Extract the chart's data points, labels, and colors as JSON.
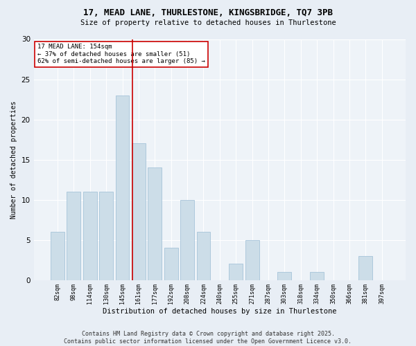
{
  "title_line1": "17, MEAD LANE, THURLESTONE, KINGSBRIDGE, TQ7 3PB",
  "title_line2": "Size of property relative to detached houses in Thurlestone",
  "xlabel": "Distribution of detached houses by size in Thurlestone",
  "ylabel": "Number of detached properties",
  "bar_color": "#ccdde8",
  "bar_edge_color": "#9bbcd4",
  "categories": [
    "82sqm",
    "98sqm",
    "114sqm",
    "130sqm",
    "145sqm",
    "161sqm",
    "177sqm",
    "192sqm",
    "208sqm",
    "224sqm",
    "240sqm",
    "255sqm",
    "271sqm",
    "287sqm",
    "303sqm",
    "318sqm",
    "334sqm",
    "350sqm",
    "366sqm",
    "381sqm",
    "397sqm"
  ],
  "values": [
    6,
    11,
    11,
    11,
    23,
    17,
    14,
    4,
    10,
    6,
    0,
    2,
    5,
    0,
    1,
    0,
    1,
    0,
    0,
    3,
    0
  ],
  "vline_x": 4.6,
  "vline_color": "#cc0000",
  "annotation_text": "17 MEAD LANE: 154sqm\n← 37% of detached houses are smaller (51)\n62% of semi-detached houses are larger (85) →",
  "annotation_box_color": "#ffffff",
  "annotation_box_edge": "#cc0000",
  "ylim": [
    0,
    30
  ],
  "yticks": [
    0,
    5,
    10,
    15,
    20,
    25,
    30
  ],
  "bg_color": "#e8eef5",
  "plot_bg_color": "#eef3f8",
  "footer": "Contains HM Land Registry data © Crown copyright and database right 2025.\nContains public sector information licensed under the Open Government Licence v3.0."
}
